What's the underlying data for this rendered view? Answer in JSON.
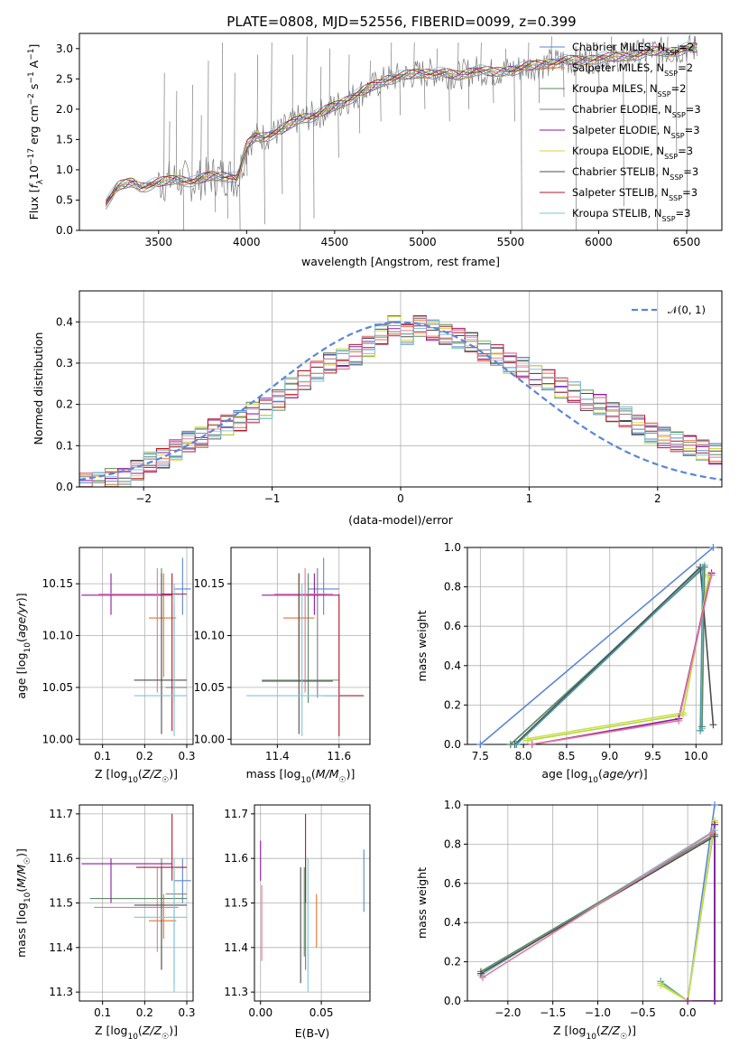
{
  "figure": {
    "title": "PLATE=0808, MJD=52556, FIBERID=0099, z=0.399",
    "model_colors": [
      "#5b86d6",
      "#e6742d",
      "#5e8a66",
      "#7c7c7c",
      "#8b1aa8",
      "#d6d63a",
      "#4d4d4d",
      "#b2182b",
      "#7fc6d8"
    ],
    "pink": "#e07a9a",
    "models": [
      "Chabrier MILES, N_SSP=2",
      "Salpeter MILES, N_SSP=2",
      "Kroupa MILES, N_SSP=2",
      "Chabrier ELODIE, N_SSP=3",
      "Salpeter ELODIE, N_SSP=3",
      "Kroupa ELODIE, N_SSP=3",
      "Chabrier STELIB, N_SSP=3",
      "Salpeter STELIB, N_SSP=3",
      "Kroupa STELIB, N_SSP=3"
    ]
  },
  "chart_data": [
    {
      "id": "spectrum",
      "type": "line",
      "xlabel": "wavelength [Angstrom, rest frame]",
      "ylabel": "Flux [f_λ 10^-17 erg cm^-2 s^-1 A^-1]",
      "xlim": [
        3050,
        6700
      ],
      "ylim": [
        0,
        3.25
      ],
      "xticks": [
        3500,
        4000,
        4500,
        5000,
        5500,
        6000,
        6500
      ],
      "yticks": [
        0.0,
        0.5,
        1.0,
        1.5,
        2.0,
        2.5,
        3.0
      ],
      "legend": {
        "position": "top-right",
        "entries": [
          {
            "name": "Chabrier MILES",
            "sup": "2"
          },
          {
            "name": "Salpeter MILES",
            "sup": "2"
          },
          {
            "name": "Kroupa MILES",
            "sup": "2"
          },
          {
            "name": "Chabrier ELODIE",
            "sup": "3"
          },
          {
            "name": "Salpeter ELODIE",
            "sup": "3"
          },
          {
            "name": "Kroupa ELODIE",
            "sup": "3"
          },
          {
            "name": "Chabrier STELIB",
            "sup": "3"
          },
          {
            "name": "Salpeter STELIB",
            "sup": "3"
          },
          {
            "name": "Kroupa STELIB",
            "sup": "3"
          }
        ]
      },
      "continuum": {
        "x": [
          3200,
          3240,
          3270,
          3300,
          3350,
          3400,
          3450,
          3500,
          3600,
          3700,
          3800,
          3900,
          3950,
          4000,
          4050,
          4100,
          4200,
          4300,
          4400,
          4500,
          4600,
          4700,
          4800,
          4900,
          5000,
          5100,
          5200,
          5300,
          5400,
          5500,
          5600,
          5700,
          5800,
          5900,
          6000,
          6100,
          6200,
          6300,
          6400,
          6500,
          6560
        ],
        "y": [
          0.45,
          0.6,
          0.72,
          0.75,
          0.8,
          0.72,
          0.75,
          0.78,
          0.85,
          0.8,
          0.9,
          0.9,
          0.85,
          1.4,
          1.55,
          1.55,
          1.65,
          1.85,
          1.9,
          2.05,
          2.2,
          2.35,
          2.5,
          2.55,
          2.6,
          2.6,
          2.55,
          2.65,
          2.6,
          2.65,
          2.7,
          2.75,
          2.8,
          2.8,
          2.85,
          2.85,
          2.9,
          2.95,
          2.95,
          3.0,
          3.0
        ]
      },
      "data_spikes": [
        [
          3530,
          2.6
        ],
        [
          3560,
          1.8
        ],
        [
          3600,
          2.3
        ],
        [
          3640,
          0.0
        ],
        [
          3690,
          2.4
        ],
        [
          3740,
          1.9
        ],
        [
          3780,
          2.8
        ],
        [
          3820,
          0.3
        ],
        [
          3860,
          3.1
        ],
        [
          3890,
          0.2
        ],
        [
          3930,
          2.6
        ],
        [
          3960,
          0.0
        ],
        [
          4000,
          0.9
        ],
        [
          4060,
          2.9
        ],
        [
          4100,
          0.1
        ],
        [
          4140,
          3.1
        ],
        [
          4200,
          0.6
        ],
        [
          4260,
          2.9
        ],
        [
          4300,
          0.0
        ],
        [
          4340,
          3.2
        ],
        [
          4380,
          0.2
        ],
        [
          4420,
          2.7
        ],
        [
          4470,
          3.0
        ],
        [
          4520,
          1.2
        ],
        [
          4580,
          2.9
        ],
        [
          4640,
          1.6
        ],
        [
          4700,
          2.8
        ],
        [
          4760,
          1.8
        ],
        [
          4820,
          3.1
        ],
        [
          4870,
          1.9
        ],
        [
          4950,
          3.1
        ],
        [
          5010,
          2.0
        ],
        [
          5080,
          3.0
        ],
        [
          5150,
          1.8
        ],
        [
          5200,
          3.1
        ],
        [
          5260,
          2.0
        ],
        [
          5330,
          3.1
        ],
        [
          5400,
          2.1
        ],
        [
          5470,
          3.0
        ],
        [
          5520,
          1.8
        ],
        [
          5560,
          0.0
        ],
        [
          5600,
          3.1
        ],
        [
          5660,
          2.1
        ],
        [
          5730,
          3.2
        ],
        [
          5800,
          2.2
        ],
        [
          5870,
          0.0
        ],
        [
          5930,
          3.1
        ],
        [
          6000,
          2.3
        ],
        [
          6070,
          3.2
        ],
        [
          6140,
          0.4
        ],
        [
          6200,
          3.1
        ],
        [
          6270,
          1.9
        ],
        [
          6330,
          0.0
        ],
        [
          6390,
          3.2
        ],
        [
          6440,
          1.2
        ],
        [
          6500,
          0.0
        ],
        [
          6540,
          3.2
        ]
      ]
    },
    {
      "id": "residuals",
      "type": "line",
      "xlabel": "(data-model)/error",
      "ylabel": "Normed distribution",
      "xlim": [
        -2.5,
        2.5
      ],
      "ylim": [
        0,
        0.475
      ],
      "xticks": [
        -2,
        -1,
        0,
        1,
        2
      ],
      "yticks": [
        0.0,
        0.1,
        0.2,
        0.3,
        0.4
      ],
      "grid": true,
      "legend": {
        "position": "top-right",
        "entries": [
          {
            "name": "𝒩(0, 1)"
          }
        ]
      },
      "reference": {
        "name": "𝒩(0, 1)",
        "mean": 0,
        "sigma": 1
      },
      "hist_bins": [
        -2.5,
        2.5,
        50
      ],
      "hist_base": [
        0.02,
        0.02,
        0.03,
        0.03,
        0.05,
        0.07,
        0.08,
        0.1,
        0.12,
        0.13,
        0.15,
        0.16,
        0.17,
        0.19,
        0.2,
        0.22,
        0.25,
        0.27,
        0.29,
        0.31,
        0.32,
        0.33,
        0.35,
        0.38,
        0.4,
        0.38,
        0.37,
        0.36,
        0.35,
        0.34,
        0.33,
        0.31,
        0.3,
        0.28,
        0.27,
        0.25,
        0.24,
        0.22,
        0.21,
        0.19,
        0.18,
        0.16,
        0.15,
        0.13,
        0.11,
        0.1,
        0.09,
        0.08,
        0.07,
        0.06
      ]
    },
    {
      "id": "age-vs-Z",
      "type": "scatter",
      "xlabel": "Z [log10(Z/Z☉)]",
      "ylabel": "age [log10(age/yr)]",
      "xlim": [
        0.045,
        0.315
      ],
      "ylim": [
        9.995,
        10.185
      ],
      "xticks": [
        0.1,
        0.2,
        0.3
      ],
      "yticks": [
        10.0,
        10.05,
        10.1,
        10.15
      ],
      "grid": true
    },
    {
      "id": "age-vs-mass",
      "type": "scatter",
      "xlabel": "mass [log10(M/M☉)]",
      "ylabel": "",
      "xlim": [
        11.25,
        11.7
      ],
      "ylim": [
        9.995,
        10.185
      ],
      "xticks": [
        11.4,
        11.6
      ],
      "yticks": [
        10.0,
        10.05,
        10.1,
        10.15
      ],
      "grid": true
    },
    {
      "id": "weight-vs-age",
      "type": "line",
      "xlabel": "age [log10(age/yr)]",
      "ylabel": "mass weight",
      "xlim": [
        7.35,
        10.3
      ],
      "ylim": [
        0,
        1.0
      ],
      "xticks": [
        7.5,
        8.0,
        8.5,
        9.0,
        9.5,
        10.0
      ],
      "yticks": [
        0.0,
        0.2,
        0.4,
        0.6,
        0.8,
        1.0
      ],
      "grid": true,
      "series": [
        {
          "x": [
            7.5,
            10.2
          ],
          "y": [
            0.0,
            1.0
          ]
        },
        {
          "x": [
            7.85,
            10.1,
            10.07
          ],
          "y": [
            0.0,
            0.91,
            0.08
          ]
        },
        {
          "x": [
            7.85,
            10.1,
            10.07
          ],
          "y": [
            0.0,
            0.9,
            0.09
          ]
        },
        {
          "x": [
            7.9,
            10.05,
            10.2
          ],
          "y": [
            0.0,
            0.9,
            0.1
          ]
        },
        {
          "x": [
            7.92,
            10.08,
            10.05
          ],
          "y": [
            0.0,
            0.9,
            0.07
          ]
        },
        {
          "x": [
            8.05,
            9.85,
            10.15
          ],
          "y": [
            0.02,
            0.15,
            0.86
          ]
        },
        {
          "x": [
            8.05,
            9.85,
            10.15
          ],
          "y": [
            0.03,
            0.16,
            0.85
          ]
        },
        {
          "x": [
            8.1,
            9.8,
            10.18
          ],
          "y": [
            0.0,
            0.13,
            0.87
          ]
        },
        {
          "x": [
            8.1,
            9.8,
            10.18
          ],
          "y": [
            0.0,
            0.12,
            0.86
          ]
        }
      ]
    },
    {
      "id": "mass-vs-Z",
      "type": "scatter",
      "xlabel": "Z [log10(Z/Z☉)]",
      "ylabel": "mass [log10(M/M☉)]",
      "xlim": [
        0.045,
        0.315
      ],
      "ylim": [
        11.28,
        11.72
      ],
      "xticks": [
        0.1,
        0.2,
        0.3
      ],
      "yticks": [
        11.3,
        11.4,
        11.5,
        11.6,
        11.7
      ],
      "grid": true
    },
    {
      "id": "mass-vs-EBV",
      "type": "scatter",
      "xlabel": "E(B-V)",
      "ylabel": "",
      "xlim": [
        -0.005,
        0.09
      ],
      "ylim": [
        11.28,
        11.72
      ],
      "xticks": [
        0.0,
        0.05
      ],
      "yticks": [
        11.3,
        11.4,
        11.5,
        11.6,
        11.7
      ],
      "grid": true
    },
    {
      "id": "weight-vs-Z",
      "type": "line",
      "xlabel": "Z [log10(Z/Z☉)]",
      "ylabel": "mass weight",
      "xlim": [
        -2.45,
        0.38
      ],
      "ylim": [
        0,
        1.0
      ],
      "xticks": [
        -2.0,
        -1.5,
        -1.0,
        -0.5,
        0.0
      ],
      "yticks": [
        0.0,
        0.2,
        0.4,
        0.6,
        0.8,
        1.0
      ],
      "grid": true,
      "series": [
        {
          "x": [
            0.0,
            0.3
          ],
          "y": [
            0.0,
            1.0
          ]
        },
        {
          "x": [
            -2.3,
            0.3,
            0.3
          ],
          "y": [
            0.13,
            0.87,
            0.0
          ]
        },
        {
          "x": [
            -2.3,
            0.3,
            0.3
          ],
          "y": [
            0.15,
            0.85,
            0.0
          ]
        },
        {
          "x": [
            -2.3,
            0.3,
            0.3
          ],
          "y": [
            0.14,
            0.84,
            0.0
          ]
        },
        {
          "x": [
            -0.3,
            0.0,
            0.3
          ],
          "y": [
            0.1,
            0.0,
            0.9
          ]
        },
        {
          "x": [
            -0.3,
            0.0,
            0.3
          ],
          "y": [
            0.09,
            0.0,
            0.91
          ]
        },
        {
          "x": [
            -0.3,
            0.0,
            0.3
          ],
          "y": [
            0.08,
            0.0,
            0.92
          ]
        },
        {
          "x": [
            0.0,
            0.3,
            0.3
          ],
          "y": [
            0.0,
            0.0,
            0.9
          ]
        },
        {
          "x": [
            -2.28,
            0.28
          ],
          "y": [
            0.12,
            0.86
          ]
        }
      ]
    }
  ],
  "errorbars": {
    "age_Z": [
      {
        "x": 0.29,
        "xl": 0.27,
        "xh": 0.31,
        "y": 10.145,
        "yl": 10.12,
        "yh": 10.175
      },
      {
        "x": 0.245,
        "xl": 0.21,
        "xh": 0.275,
        "y": 10.117,
        "yl": 10.06,
        "yh": 10.16
      },
      {
        "x": 0.24,
        "xl": 0.175,
        "xh": 0.3,
        "y": 10.057,
        "yl": 10.035,
        "yh": 10.165
      },
      {
        "x": 0.27,
        "xl": 0.25,
        "xh": 0.3,
        "y": 10.05,
        "yl": 10.035,
        "yh": 10.13
      },
      {
        "x": 0.12,
        "xl": 0.05,
        "xh": 0.265,
        "y": 10.139,
        "yl": 10.12,
        "yh": 10.16
      },
      {
        "x": 0.23,
        "xl": 0.09,
        "xh": 0.28,
        "y": 10.14,
        "yl": 10.045,
        "yh": 10.165
      },
      {
        "x": 0.24,
        "xl": 0.175,
        "xh": 0.3,
        "y": 10.057,
        "yl": 10.005,
        "yh": 10.16
      },
      {
        "x": 0.265,
        "xl": 0.24,
        "xh": 0.3,
        "y": 10.14,
        "yl": 10.008,
        "yh": 10.16
      },
      {
        "x": 0.27,
        "xl": 0.175,
        "xh": 0.3,
        "y": 10.042,
        "yl": 10.003,
        "yh": 10.15
      }
    ],
    "age_mass": [
      {
        "x": 11.55,
        "xl": 11.5,
        "xh": 11.6,
        "y": 10.145,
        "yl": 10.12,
        "yh": 10.175
      },
      {
        "x": 11.47,
        "xl": 11.42,
        "xh": 11.52,
        "y": 10.117,
        "yl": 10.06,
        "yh": 10.16
      },
      {
        "x": 11.5,
        "xl": 11.35,
        "xh": 11.6,
        "y": 10.057,
        "yl": 10.035,
        "yh": 10.16
      },
      {
        "x": 11.53,
        "xl": 11.5,
        "xh": 11.56,
        "y": 10.14,
        "yl": 10.04,
        "yh": 10.165
      },
      {
        "x": 11.52,
        "xl": 11.35,
        "xh": 11.6,
        "y": 10.139,
        "yl": 10.12,
        "yh": 10.16
      },
      {
        "x": 11.49,
        "xl": 11.39,
        "xh": 11.58,
        "y": 10.14,
        "yl": 10.045,
        "yh": 10.165
      },
      {
        "x": 11.47,
        "xl": 11.35,
        "xh": 11.58,
        "y": 10.056,
        "yl": 10.005,
        "yh": 10.16
      },
      {
        "x": 11.6,
        "xl": 11.55,
        "xh": 11.68,
        "y": 10.042,
        "yl": 10.003,
        "yh": 10.14
      },
      {
        "x": 11.48,
        "xl": 11.3,
        "xh": 11.6,
        "y": 10.042,
        "yl": 10.003,
        "yh": 10.15
      }
    ],
    "mass_Z": [
      {
        "x": 0.29,
        "xl": 0.27,
        "xh": 0.31,
        "y": 11.55,
        "yl": 11.5,
        "yh": 11.6
      },
      {
        "x": 0.245,
        "xl": 0.21,
        "xh": 0.275,
        "y": 11.46,
        "yl": 11.42,
        "yh": 11.52
      },
      {
        "x": 0.24,
        "xl": 0.07,
        "xh": 0.3,
        "y": 11.51,
        "yl": 11.35,
        "yh": 11.6
      },
      {
        "x": 0.27,
        "xl": 0.25,
        "xh": 0.3,
        "y": 11.52,
        "yl": 11.32,
        "yh": 11.58
      },
      {
        "x": 0.12,
        "xl": 0.05,
        "xh": 0.265,
        "y": 11.588,
        "yl": 11.5,
        "yh": 11.6
      },
      {
        "x": 0.23,
        "xl": 0.08,
        "xh": 0.28,
        "y": 11.49,
        "yl": 11.39,
        "yh": 11.58
      },
      {
        "x": 0.24,
        "xl": 0.175,
        "xh": 0.3,
        "y": 11.495,
        "yl": 11.35,
        "yh": 11.58
      },
      {
        "x": 0.265,
        "xl": 0.18,
        "xh": 0.3,
        "y": 11.58,
        "yl": 11.55,
        "yh": 11.7
      },
      {
        "x": 0.27,
        "xl": 0.175,
        "xh": 0.3,
        "y": 11.468,
        "yl": 11.3,
        "yh": 11.6
      }
    ],
    "mass_EBV": [
      {
        "x": 0.085,
        "y": 11.55,
        "yl": 11.48,
        "yh": 11.62
      },
      {
        "x": 0.046,
        "y": 11.46,
        "yl": 11.4,
        "yh": 11.52
      },
      {
        "x": 0.036,
        "y": 11.47,
        "yl": 11.38,
        "yh": 11.58
      },
      {
        "x": 0.037,
        "y": 11.5,
        "yl": 11.35,
        "yh": 11.6
      },
      {
        "x": 0.0,
        "y": 11.59,
        "yl": 11.55,
        "yh": 11.64
      },
      {
        "x": 0.001,
        "y": 11.45,
        "yl": 11.37,
        "yh": 11.54
      },
      {
        "x": 0.033,
        "y": 11.45,
        "yl": 11.32,
        "yh": 11.58
      },
      {
        "x": 0.037,
        "y": 11.6,
        "yl": 11.5,
        "yh": 11.7
      },
      {
        "x": 0.039,
        "y": 11.47,
        "yl": 11.3,
        "yh": 11.6
      }
    ]
  }
}
